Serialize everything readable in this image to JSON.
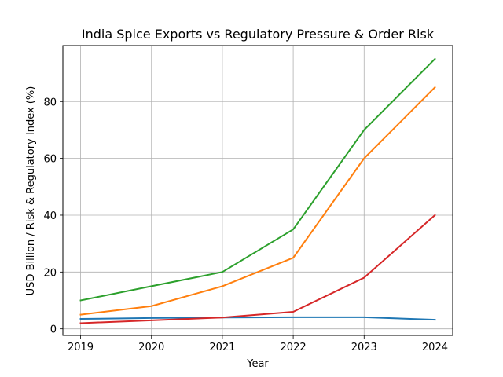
{
  "chart_data": {
    "type": "line",
    "title": "India Spice Exports vs Regulatory Pressure & Order Risk",
    "xlabel": "Year",
    "ylabel": "USD Billion / Risk & Regulatory Index (%)",
    "x": [
      2019,
      2020,
      2021,
      2022,
      2023,
      2024
    ],
    "x_tick_labels": [
      "2019",
      "2020",
      "2021",
      "2022",
      "2023",
      "2024"
    ],
    "y_ticks": [
      0,
      20,
      40,
      60,
      80
    ],
    "y_tick_labels": [
      "0",
      "20",
      "40",
      "60",
      "80"
    ],
    "xlim": [
      2018.75,
      2024.25
    ],
    "ylim": [
      -2.3,
      99.7
    ],
    "grid": true,
    "legend": "none",
    "series": [
      {
        "name": "series-blue",
        "color": "#1f77b4",
        "values": [
          3.5,
          3.8,
          4.0,
          4.1,
          4.1,
          3.2
        ]
      },
      {
        "name": "series-orange",
        "color": "#ff7f0e",
        "values": [
          5,
          8,
          15,
          25,
          60,
          85
        ]
      },
      {
        "name": "series-green",
        "color": "#2ca02c",
        "values": [
          10,
          15,
          20,
          35,
          70,
          95
        ]
      },
      {
        "name": "series-red",
        "color": "#d62728",
        "values": [
          2,
          3,
          4,
          6,
          18,
          40
        ]
      }
    ]
  }
}
